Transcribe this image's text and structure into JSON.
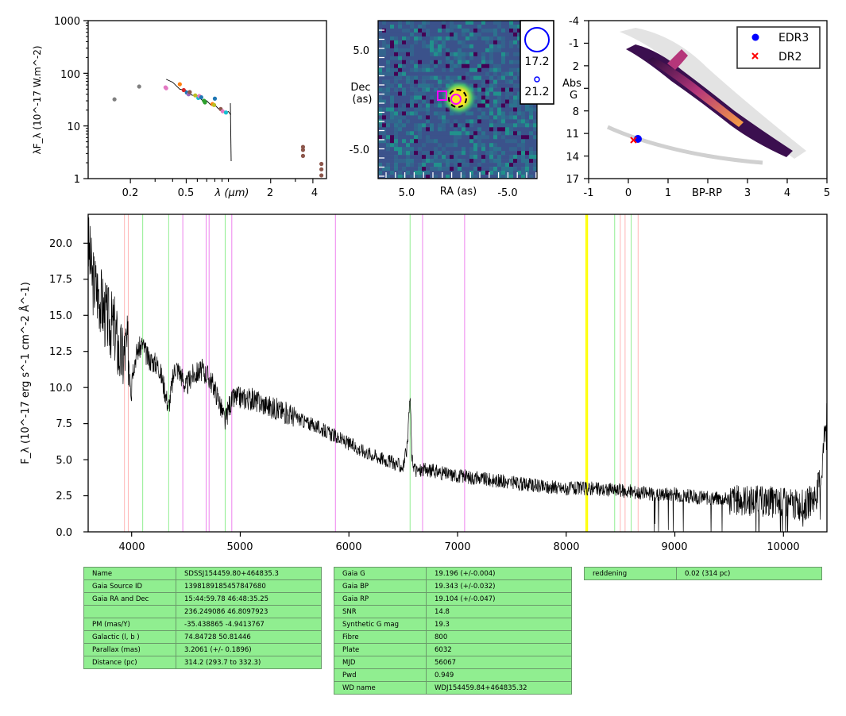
{
  "chart_data": [
    {
      "type": "scatter",
      "panel": "sed",
      "xlabel": "λ (μm)",
      "ylabel": "λF_λ (10^-17 W.m^-2)",
      "xscale": "log",
      "yscale": "log",
      "xlim": [
        0.1,
        5
      ],
      "ylim": [
        1,
        1000
      ],
      "x_tick_labels": [
        "0.2",
        "0.5",
        "2",
        "4"
      ],
      "y_tick_labels": [
        "1",
        "10",
        "100",
        "1000"
      ],
      "grid": false,
      "points": [
        {
          "x": 0.154,
          "y": 32,
          "color": "#7f7f7f"
        },
        {
          "x": 0.231,
          "y": 56,
          "color": "#7f7f7f"
        },
        {
          "x": 0.356,
          "y": 54,
          "color": "#e377c2"
        },
        {
          "x": 0.36,
          "y": 52,
          "color": "#e377c2"
        },
        {
          "x": 0.45,
          "y": 62,
          "color": "#ff7f0e"
        },
        {
          "x": 0.48,
          "y": 48,
          "color": "#d62728"
        },
        {
          "x": 0.505,
          "y": 43,
          "color": "#1f77b4"
        },
        {
          "x": 0.52,
          "y": 40,
          "color": "#9467bd"
        },
        {
          "x": 0.53,
          "y": 44,
          "color": "#8c564b"
        },
        {
          "x": 0.58,
          "y": 38,
          "color": "#bcbd22"
        },
        {
          "x": 0.61,
          "y": 34,
          "color": "#17becf"
        },
        {
          "x": 0.62,
          "y": 37,
          "color": "#e377c2"
        },
        {
          "x": 0.64,
          "y": 35,
          "color": "#1f77b4"
        },
        {
          "x": 0.67,
          "y": 30,
          "color": "#2ca02c"
        },
        {
          "x": 0.68,
          "y": 28,
          "color": "#2ca02c"
        },
        {
          "x": 0.77,
          "y": 26,
          "color": "#ff7f0e"
        },
        {
          "x": 0.79,
          "y": 25,
          "color": "#bcbd22"
        },
        {
          "x": 0.8,
          "y": 33,
          "color": "#1f77b4"
        },
        {
          "x": 0.88,
          "y": 21,
          "color": "#8c564b"
        },
        {
          "x": 0.91,
          "y": 19,
          "color": "#e377c2"
        },
        {
          "x": 0.96,
          "y": 18,
          "color": "#17becf"
        },
        {
          "x": 3.4,
          "y": 4.0,
          "color": "#8c564b"
        },
        {
          "x": 3.4,
          "y": 3.5,
          "color": "#8c564b"
        },
        {
          "x": 3.4,
          "y": 2.7,
          "color": "#8c564b"
        },
        {
          "x": 4.6,
          "y": 1.9,
          "color": "#8c564b"
        },
        {
          "x": 4.6,
          "y": 1.5,
          "color": "#8c564b"
        },
        {
          "x": 4.6,
          "y": 1.15,
          "color": "#8c564b"
        }
      ],
      "spectrum_line": {
        "color": "#000000",
        "x": [
          0.36,
          0.4,
          0.45,
          0.5,
          0.55,
          0.6,
          0.65,
          0.7,
          0.75,
          0.8,
          0.85,
          0.9,
          0.95,
          1.0,
          1.04
        ],
        "y": [
          80,
          65,
          52,
          45,
          40,
          36,
          32,
          29,
          26,
          24,
          22,
          20,
          19,
          18,
          17
        ]
      }
    },
    {
      "type": "heatmap",
      "panel": "image",
      "xlabel": "RA (as)",
      "ylabel": "Dec\n(as)",
      "x_tick_labels": [
        "5.0",
        "-5.0"
      ],
      "y_tick_labels": [
        "5.0",
        "-5.0"
      ],
      "xlim": [
        8,
        -8
      ],
      "ylim": [
        -8,
        8
      ],
      "colormap": "viridis",
      "markers": [
        {
          "shape": "square",
          "color": "#ff00ff",
          "x": 1.5,
          "y": 0.3
        },
        {
          "shape": "circle",
          "color": "#ff00ff",
          "x": -0.1,
          "y": 0.0
        },
        {
          "shape": "circle-dashed",
          "color": "#000000",
          "x": 0.0,
          "y": 0.0
        }
      ],
      "legend": {
        "entries": [
          "17.2",
          "21.2"
        ],
        "color": "#0000ff",
        "placement": "right"
      }
    },
    {
      "type": "scatter",
      "panel": "hr",
      "xlabel": "BP-RP",
      "ylabel": "Abs\nG",
      "xlim": [
        -1,
        5
      ],
      "ylim": [
        17,
        -4
      ],
      "x_tick_labels": [
        "-1",
        "0",
        "1",
        "BP-RP",
        "3",
        "4",
        "5"
      ],
      "y_tick_labels": [
        "-4",
        "-1",
        "2",
        "5",
        "8",
        "11",
        "14",
        "17"
      ],
      "grid": false,
      "legend": {
        "placement": "top-right",
        "entries": [
          "EDR3",
          "DR2"
        ]
      },
      "series": [
        {
          "name": "EDR3",
          "marker": "circle",
          "color": "#0000ff",
          "x": 0.26,
          "y": 11.7
        },
        {
          "name": "DR2",
          "marker": "x",
          "color": "#ff0000",
          "x": 0.15,
          "y": 12.0
        }
      ]
    },
    {
      "type": "line",
      "panel": "spectrum",
      "xlabel": "",
      "ylabel": "F_λ (10^-17 erg s^-1 cm^-2 Å^-1)",
      "xlim": [
        3600,
        10400
      ],
      "ylim": [
        0,
        22
      ],
      "x_tick_labels": [
        "4000",
        "5000",
        "6000",
        "7000",
        "8000",
        "9000",
        "10000"
      ],
      "y_tick_labels": [
        "0.0",
        "2.5",
        "5.0",
        "7.5",
        "10.0",
        "12.5",
        "15.0",
        "17.5",
        "20.0"
      ],
      "grid": false,
      "color": "#000000",
      "x": [
        3600,
        3640,
        3700,
        3760,
        3800,
        3850,
        3880,
        3920,
        3950,
        3980,
        4000,
        4050,
        4100,
        4150,
        4200,
        4250,
        4300,
        4340,
        4400,
        4450,
        4500,
        4550,
        4600,
        4650,
        4700,
        4750,
        4800,
        4861,
        4900,
        4950,
        5000,
        5100,
        5200,
        5300,
        5400,
        5500,
        5600,
        5700,
        5800,
        5900,
        6000,
        6100,
        6200,
        6300,
        6400,
        6500,
        6540,
        6563,
        6580,
        6620,
        6700,
        6800,
        6900,
        7000,
        7200,
        7400,
        7600,
        7800,
        8000,
        8200,
        8400,
        8600,
        8800,
        9000,
        9200,
        9400,
        9600,
        9800,
        10000,
        10100,
        10200,
        10300,
        10350,
        10400
      ],
      "y": [
        20.0,
        17.5,
        16.5,
        15.0,
        14.5,
        14.0,
        12.5,
        12.0,
        12.8,
        12.2,
        11.0,
        12.5,
        13.0,
        12.0,
        11.8,
        11.5,
        10.0,
        8.6,
        11.5,
        11.0,
        10.0,
        10.8,
        11.0,
        11.2,
        10.8,
        10.2,
        9.2,
        7.6,
        8.8,
        9.3,
        9.3,
        9.2,
        8.9,
        8.6,
        8.3,
        8.0,
        7.6,
        7.3,
        6.9,
        6.5,
        6.1,
        5.7,
        5.4,
        5.1,
        4.8,
        4.5,
        6.0,
        9.6,
        5.0,
        4.2,
        4.3,
        4.2,
        4.0,
        3.9,
        3.7,
        3.5,
        3.3,
        3.1,
        3.0,
        3.0,
        2.9,
        2.8,
        2.6,
        2.6,
        2.4,
        2.3,
        2.2,
        2.1,
        2.0,
        1.9,
        1.8,
        2.5,
        4.0,
        9.0
      ],
      "lines": [
        {
          "wavelength": 3934,
          "color": "#ffb6b6"
        },
        {
          "wavelength": 3969,
          "color": "#ffb6b6"
        },
        {
          "wavelength": 4102,
          "color": "#90ee90"
        },
        {
          "wavelength": 4341,
          "color": "#90ee90"
        },
        {
          "wavelength": 4471,
          "color": "#ee82ee"
        },
        {
          "wavelength": 4686,
          "color": "#ee82ee"
        },
        {
          "wavelength": 4713,
          "color": "#ee82ee"
        },
        {
          "wavelength": 4861,
          "color": "#90ee90"
        },
        {
          "wavelength": 4922,
          "color": "#ee82ee"
        },
        {
          "wavelength": 5876,
          "color": "#ee82ee"
        },
        {
          "wavelength": 6563,
          "color": "#90ee90"
        },
        {
          "wavelength": 6678,
          "color": "#ee82ee"
        },
        {
          "wavelength": 7065,
          "color": "#ee82ee"
        },
        {
          "wavelength": 8183,
          "color": "#ffff00"
        },
        {
          "wavelength": 8195,
          "color": "#ffff00"
        },
        {
          "wavelength": 8446,
          "color": "#90ee90"
        },
        {
          "wavelength": 8498,
          "color": "#ffb6b6"
        },
        {
          "wavelength": 8542,
          "color": "#ffb6b6"
        },
        {
          "wavelength": 8598,
          "color": "#90ee90"
        },
        {
          "wavelength": 8662,
          "color": "#ffb6b6"
        }
      ]
    }
  ],
  "tables": {
    "left": [
      [
        "Name",
        "SDSSJ154459.80+464835.3"
      ],
      [
        "Gaia Source ID",
        "1398189185457847680"
      ],
      [
        "Gaia RA and Dec",
        "15:44:59.78    46:48:35.25"
      ],
      [
        "",
        "236.249086    46.8097923"
      ],
      [
        "PM (mas/Y)",
        "-35.438865    -4.9413767"
      ],
      [
        "Galactic (l, b )",
        "74.84728    50.81446"
      ],
      [
        "Parallax (mas)",
        "3.2061 (+/- 0.1896)"
      ],
      [
        "Distance (pc)",
        "314.2 (293.7 to 332.3)"
      ]
    ],
    "middle": [
      [
        "Gaia G",
        "19.196 (+/-0.004)"
      ],
      [
        "Gaia BP",
        "19.343 (+/-0.032)"
      ],
      [
        "Gaia RP",
        "19.104 (+/-0.047)"
      ],
      [
        "SNR",
        "14.8"
      ],
      [
        "Synthetic G mag",
        "19.3"
      ],
      [
        "Fibre",
        "800"
      ],
      [
        "Plate",
        "6032"
      ],
      [
        "MJD",
        "56067"
      ],
      [
        "Pwd",
        "0.949"
      ],
      [
        "WD name",
        "WDJ154459.84+464835.32"
      ]
    ],
    "right": [
      [
        "reddening",
        "0.02 (314 pc)"
      ]
    ]
  }
}
